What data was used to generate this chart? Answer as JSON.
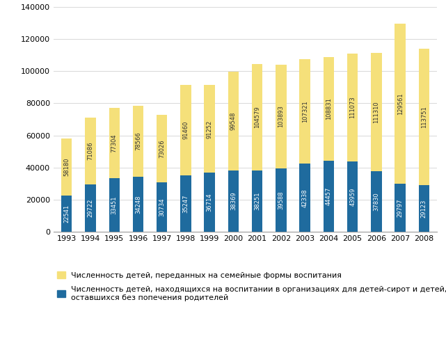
{
  "years": [
    1993,
    1994,
    1995,
    1996,
    1997,
    1998,
    1999,
    2000,
    2001,
    2002,
    2003,
    2004,
    2005,
    2006,
    2007,
    2008
  ],
  "yellow_values": [
    58180,
    71086,
    77304,
    78566,
    73026,
    91460,
    91252,
    99548,
    104579,
    103893,
    107321,
    108831,
    111073,
    111310,
    129561,
    113751
  ],
  "blue_values": [
    22541,
    29722,
    33451,
    34248,
    30734,
    35247,
    36714,
    38369,
    38251,
    39588,
    42338,
    44457,
    43959,
    37830,
    29797,
    29123
  ],
  "yellow_color": "#F5E07A",
  "blue_color": "#1F6B9E",
  "ylim": [
    0,
    140000
  ],
  "yticks": [
    0,
    20000,
    40000,
    60000,
    80000,
    100000,
    120000,
    140000
  ],
  "legend_yellow": "Численность детей, переданных на семейные формы воспитания",
  "legend_blue": "Численность детей, находящихся на воспитании в организациях для детей-сирот и детей,\nоставшихся без попечения родителей",
  "bar_width": 0.45,
  "value_fontsize": 6.0,
  "axis_label_fontsize": 8,
  "legend_fontsize": 8,
  "grid_color": "#d8d8d8",
  "background_color": "#ffffff",
  "spine_color": "#999999"
}
